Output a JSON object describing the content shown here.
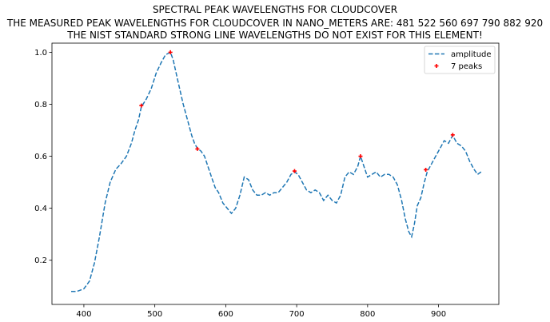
{
  "chart_data": {
    "type": "line",
    "title_lines": [
      "SPECTRAL PEAK WAVELENGTHS FOR CLOUDCOVER",
      "THE MEASURED PEAK WAVELENGTHS FOR CLOUDCOVER IN NANO_METERS ARE: 481 522 560 697 790 882 920",
      "THE NIST STANDARD STRONG LINE WAVELENGTHS DO NOT EXIST FOR THIS ELEMENT!"
    ],
    "xlim": [
      355,
      985
    ],
    "ylim": [
      0.03,
      1.035
    ],
    "x_ticks": [
      400,
      500,
      600,
      700,
      800,
      900
    ],
    "y_ticks": [
      0.2,
      0.4,
      0.6,
      0.8,
      1.0
    ],
    "grid": false,
    "legend_placement": "top-right",
    "series": [
      {
        "name": "amplitude",
        "style": "dashed",
        "color": "#1f77b4",
        "x": [
          382,
          390,
          400,
          408,
          415,
          422,
          430,
          437,
          445,
          452,
          460,
          467,
          472,
          477,
          481,
          488,
          495,
          502,
          509,
          515,
          522,
          526,
          530,
          535,
          540,
          547,
          552,
          556,
          560,
          565,
          570,
          575,
          580,
          585,
          590,
          596,
          602,
          608,
          614,
          620,
          626,
          632,
          638,
          644,
          650,
          656,
          662,
          668,
          674,
          680,
          686,
          692,
          697,
          702,
          708,
          714,
          720,
          726,
          732,
          738,
          744,
          750,
          756,
          762,
          768,
          774,
          780,
          786,
          790,
          795,
          800,
          806,
          812,
          818,
          824,
          830,
          836,
          842,
          848,
          853,
          858,
          862,
          866,
          870,
          875,
          880,
          884,
          890,
          896,
          902,
          908,
          914,
          920,
          926,
          932,
          938,
          944,
          950,
          955,
          960
        ],
        "y": [
          0.08,
          0.08,
          0.09,
          0.12,
          0.19,
          0.29,
          0.42,
          0.5,
          0.55,
          0.57,
          0.6,
          0.65,
          0.7,
          0.74,
          0.79,
          0.82,
          0.86,
          0.92,
          0.96,
          0.99,
          1.0,
          0.97,
          0.92,
          0.86,
          0.8,
          0.73,
          0.68,
          0.65,
          0.63,
          0.62,
          0.6,
          0.56,
          0.52,
          0.48,
          0.46,
          0.42,
          0.4,
          0.38,
          0.4,
          0.45,
          0.52,
          0.51,
          0.47,
          0.45,
          0.45,
          0.46,
          0.45,
          0.46,
          0.46,
          0.48,
          0.5,
          0.53,
          0.54,
          0.53,
          0.5,
          0.47,
          0.46,
          0.47,
          0.46,
          0.43,
          0.45,
          0.43,
          0.42,
          0.45,
          0.52,
          0.54,
          0.53,
          0.56,
          0.6,
          0.56,
          0.52,
          0.53,
          0.54,
          0.52,
          0.53,
          0.53,
          0.52,
          0.49,
          0.43,
          0.36,
          0.31,
          0.29,
          0.34,
          0.41,
          0.44,
          0.5,
          0.54,
          0.57,
          0.6,
          0.63,
          0.66,
          0.65,
          0.68,
          0.65,
          0.64,
          0.62,
          0.58,
          0.55,
          0.53,
          0.54
        ]
      },
      {
        "name": "7 peaks",
        "style": "markers",
        "color": "#ff0000",
        "x": [
          481,
          522,
          560,
          697,
          790,
          882,
          920
        ],
        "y": [
          0.795,
          1.0,
          0.628,
          0.543,
          0.6,
          0.548,
          0.682
        ]
      }
    ]
  }
}
